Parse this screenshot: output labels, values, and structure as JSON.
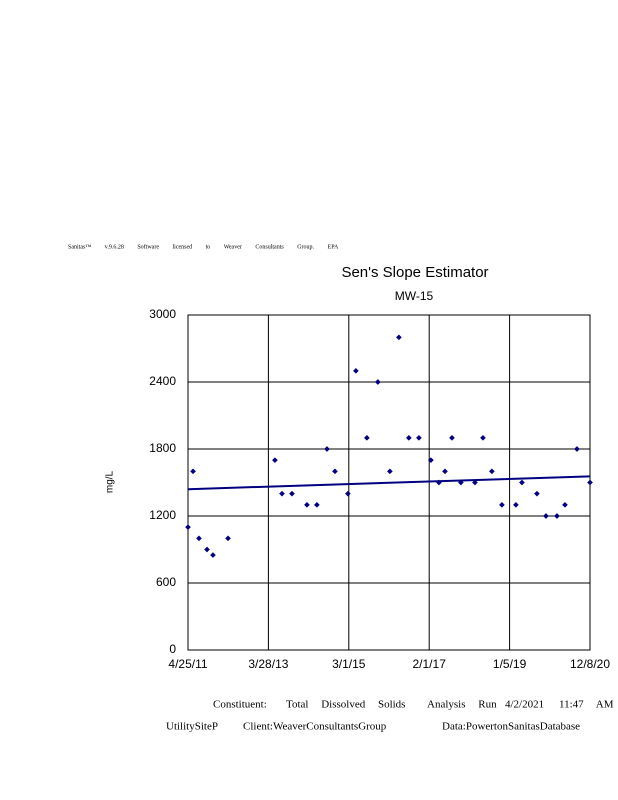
{
  "header": {
    "license": "Sanitas™ v.9.6.28 Software licensed to Weaver Consultants Group. EPA"
  },
  "chart_data": {
    "type": "scatter",
    "title": "Sen's Slope Estimator",
    "subtitle": "MW-15",
    "y_label": "mg/L",
    "color": "#000080",
    "x": [
      "4/25/11",
      "6/8/11",
      "7/30/11",
      "10/8/11",
      "11/29/11",
      "4/9/12",
      "5/24/13",
      "7/25/13",
      "10/20/13",
      "2/28/14",
      "5/26/14",
      "8/22/14",
      "10/31/14",
      "2/21/15",
      "5/2/15",
      "8/6/15",
      "11/10/15",
      "2/23/16",
      "5/12/16",
      "8/7/16",
      "11/3/16",
      "2/16/17",
      "4/27/17",
      "6/19/17",
      "8/19/17",
      "11/5/17",
      "3/8/18",
      "5/17/18",
      "8/3/18",
      "10/30/18",
      "3/1/19",
      "4/23/19",
      "9/1/19",
      "11/19/19",
      "2/23/20",
      "5/3/20",
      "8/16/20",
      "12/8/20"
    ],
    "values": [
      1100,
      1600,
      1000,
      900,
      850,
      1000,
      1700,
      1400,
      1400,
      1300,
      1300,
      1800,
      1600,
      1400,
      2500,
      1900,
      2400,
      1600,
      2800,
      1900,
      1900,
      1700,
      1500,
      1600,
      1900,
      1500,
      1500,
      1900,
      1600,
      1300,
      1300,
      1500,
      1400,
      1200,
      1200,
      1300,
      1800,
      1500
    ],
    "trend": {
      "x": [
        "4/25/11",
        "12/8/20"
      ],
      "values": [
        1440,
        1555
      ]
    },
    "xlim": [
      "4/25/11",
      "12/8/20"
    ],
    "xticks": [
      "4/25/11",
      "3/28/13",
      "3/1/15",
      "2/1/17",
      "1/5/19",
      "12/8/20"
    ],
    "ylim": [
      0,
      3000
    ],
    "yticks": [
      0,
      600,
      1200,
      1800,
      2400,
      3000
    ],
    "grid": true
  },
  "footer": {
    "constituent": "Constituent:",
    "name": "Total Dissolved Solids",
    "run_label": "Analysis Run",
    "run_date": "4/2/2021",
    "run_time": "11:47 AM",
    "site": "UtilitySiteP",
    "client": "Client:WeaverConsultantsGroup",
    "data": "Data:PowertonSanitasDatabase"
  }
}
